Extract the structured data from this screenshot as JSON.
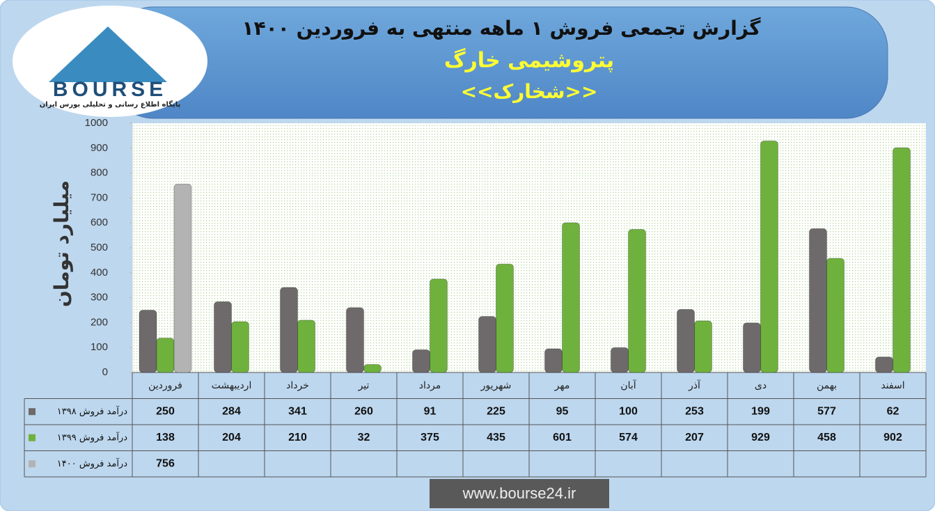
{
  "logo": {
    "name": "BOURSE",
    "tagline": "پایگاه اطلاع رسانی و تحلیلی بورس ایران"
  },
  "footer": "www.bourse24.ir",
  "chart_data": {
    "type": "bar",
    "title": "گزارش تجمعی فروش ۱ ماهه منتهی به فروردین ۱۴۰۰",
    "subtitle": "پتروشیمی خارگ",
    "ticker": "<<شخارک>>",
    "y_label": "میلیارد تومان",
    "categories": [
      "فروردین",
      "اردیبهشت",
      "خرداد",
      "تیر",
      "مرداد",
      "شهریور",
      "مهر",
      "آبان",
      "آذر",
      "دی",
      "بهمن",
      "اسفند"
    ],
    "series": [
      {
        "name": "درآمد فروش ۱۳۹۸",
        "color": "#6e6a6b",
        "values": [
          250,
          284,
          341,
          260,
          91,
          225,
          95,
          100,
          253,
          199,
          577,
          62
        ]
      },
      {
        "name": "درآمد فروش ۱۳۹۹",
        "color": "#6fb13d",
        "values": [
          138,
          204,
          210,
          32,
          375,
          435,
          601,
          574,
          207,
          929,
          458,
          902
        ]
      },
      {
        "name": "درآمد فروش ۱۴۰۰",
        "color": "#b3b3b3",
        "values": [
          756,
          null,
          null,
          null,
          null,
          null,
          null,
          null,
          null,
          null,
          null,
          null
        ]
      }
    ],
    "ylim": [
      0,
      1000
    ],
    "yticks": [
      0,
      100,
      200,
      300,
      400,
      500,
      600,
      700,
      800,
      900,
      1000
    ],
    "grid": false
  }
}
